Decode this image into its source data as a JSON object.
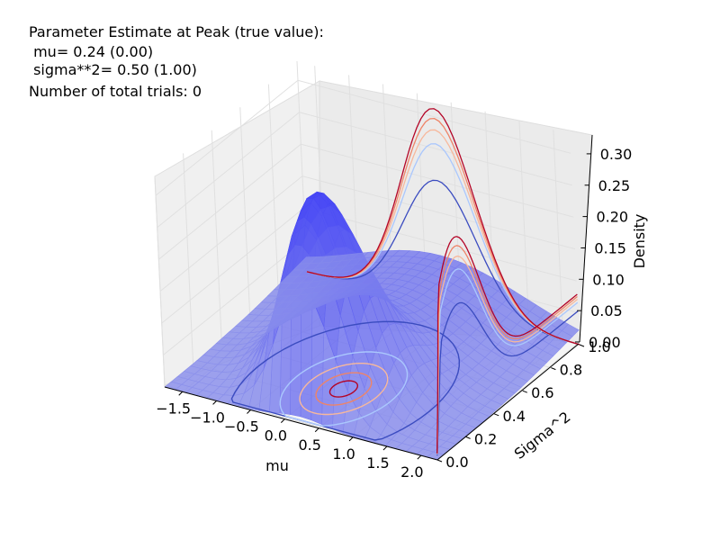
{
  "annotations": {
    "heading": "Parameter Estimate at Peak (true value):",
    "mu_line": " mu= 0.24 (0.00)",
    "sigma_line": " sigma**2= 0.50 (1.00)",
    "trials_line": "Number of total trials: 0"
  },
  "chart_data": {
    "type": "surface3d",
    "title": "",
    "xlabel": "mu",
    "ylabel": "Sigma^2",
    "zlabel": "Density",
    "xlim": [
      -1.76,
      2.24
    ],
    "ylim": [
      0.0,
      1.0
    ],
    "zlim": [
      0.0,
      0.33
    ],
    "x_ticks": [
      "−1.5",
      "−1.0",
      "−0.5",
      "0.0",
      "0.5",
      "1.0",
      "1.5",
      "2.0"
    ],
    "y_ticks": [
      "0.0",
      "0.2",
      "0.4",
      "0.6",
      "0.8",
      "1.0"
    ],
    "z_ticks": [
      "0.00",
      "0.05",
      "0.10",
      "0.15",
      "0.20",
      "0.25",
      "0.30"
    ],
    "peak": {
      "mu": 0.24,
      "sigma2": 0.5,
      "density": 0.33
    },
    "true_value": {
      "mu": 0.0,
      "sigma2": 1.0
    },
    "surface_color": "#4b55f0",
    "contour_cmap": [
      "#3b4cc0",
      "#aac7fd",
      "#f7b89c",
      "#ee8468",
      "#b40426"
    ],
    "grid": true
  }
}
